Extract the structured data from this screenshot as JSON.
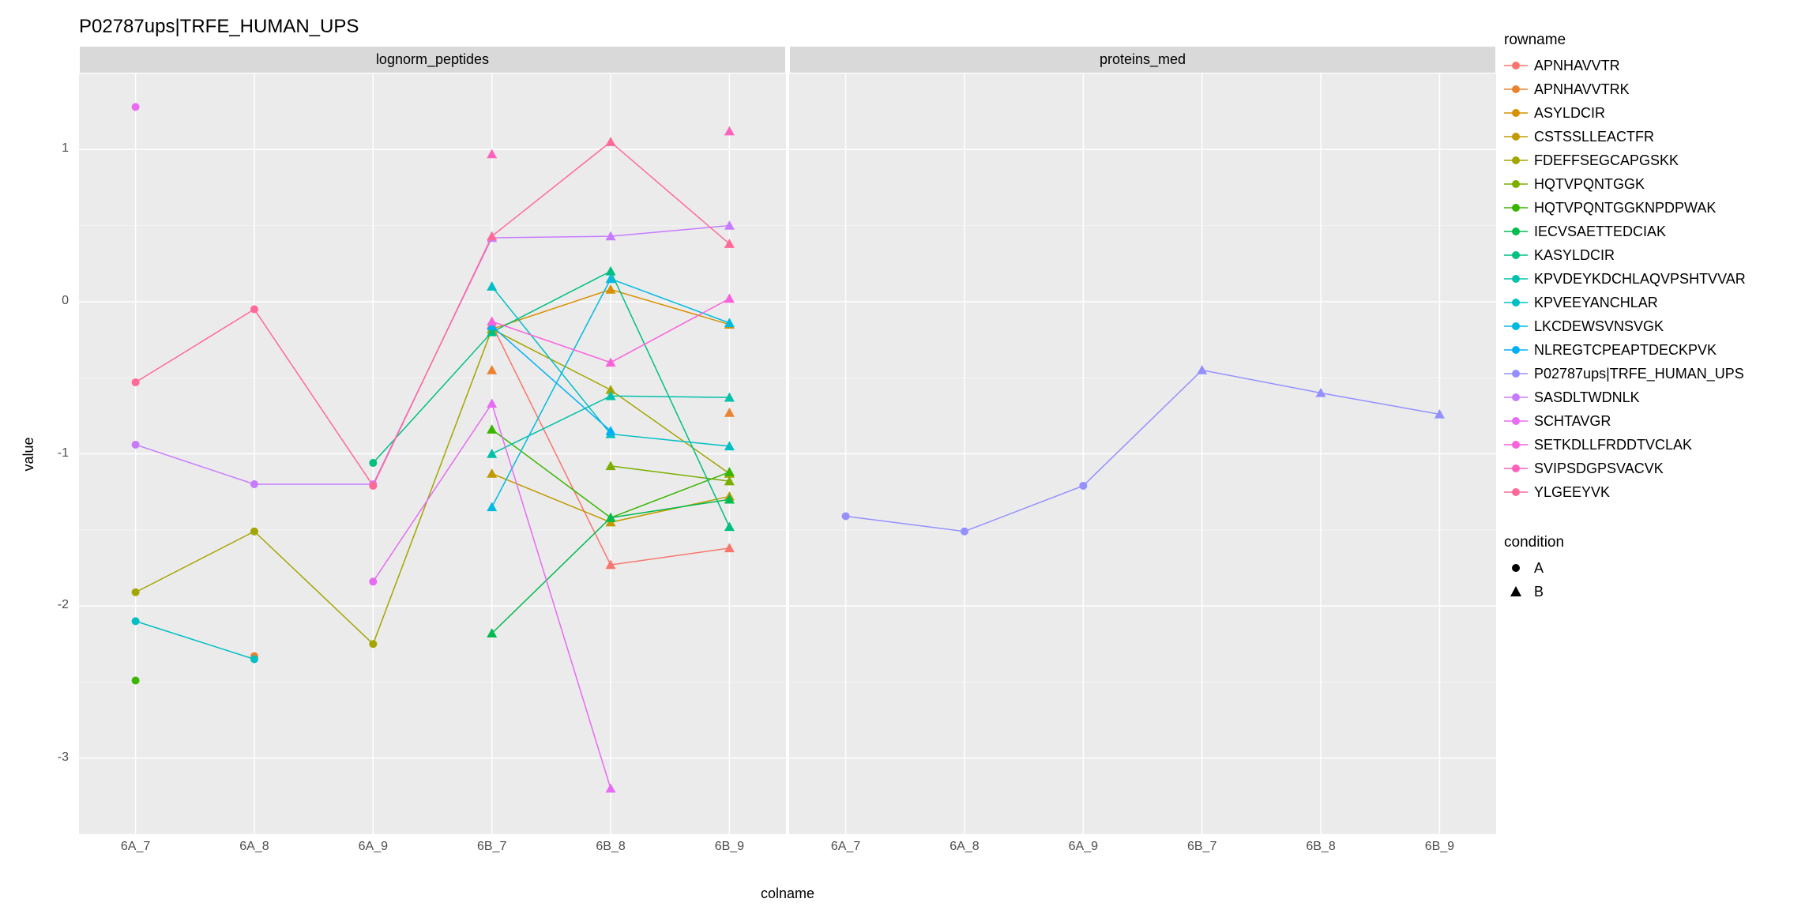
{
  "title": "P02787ups|TRFE_HUMAN_UPS",
  "y_axis": {
    "label": "value",
    "min": -3.5,
    "max": 1.5,
    "ticks": [
      -3,
      -2,
      -1,
      0,
      1
    ]
  },
  "x_axis": {
    "label": "colname",
    "categories": [
      "6A_7",
      "6A_8",
      "6A_9",
      "6B_7",
      "6B_8",
      "6B_9"
    ]
  },
  "facets": [
    {
      "label": "lognorm_peptides",
      "show_y": true
    },
    {
      "label": "proteins_med",
      "show_y": false
    }
  ],
  "conditions": [
    "A",
    "A",
    "A",
    "B",
    "B",
    "B"
  ],
  "colors": {
    "APNHAVVTR": "#F8766D",
    "APNHAVVTRK": "#EA8331",
    "ASYLDCIR": "#D89000",
    "CSTSSLLEACTFR": "#C09B00",
    "FDEFFSEGCAPGSKK": "#A3A500",
    "HQTVPQNTGGK": "#7CAE00",
    "HQTVPQNTGGKNPDPWAK": "#39B600",
    "IECVSAETTEDCIAK": "#00BB4E",
    "KASYLDCIR": "#00BF83",
    "KPVDEYKDCHLAQVPSHTVVAR": "#00C1A9",
    "KPVEEYANCHLAR": "#00BFC4",
    "LKCDEWSVNSVGK": "#00BAE0",
    "NLREGTCPEAPTDECKPVK": "#00B0F6",
    "P02787ups|TRFE_HUMAN_UPS": "#9590FF",
    "SASDLTWDNLK": "#C77CFF",
    "SCHTAVGR": "#E76BF3",
    "SETKDLLFRDDTVCLAK": "#FA62DB",
    "SVIPSDGPSVACVK": "#FF62BC",
    "YLGEEYVK": "#FF6A98"
  },
  "legend_rowname_title": "rowname",
  "legend_condition_title": "condition",
  "legend_order": [
    "APNHAVVTR",
    "APNHAVVTRK",
    "ASYLDCIR",
    "CSTSSLLEACTFR",
    "FDEFFSEGCAPGSKK",
    "HQTVPQNTGGK",
    "HQTVPQNTGGKNPDPWAK",
    "IECVSAETTEDCIAK",
    "KASYLDCIR",
    "KPVDEYKDCHLAQVPSHTVVAR",
    "KPVEEYANCHLAR",
    "LKCDEWSVNSVGK",
    "NLREGTCPEAPTDECKPVK",
    "P02787ups|TRFE_HUMAN_UPS",
    "SASDLTWDNLK",
    "SCHTAVGR",
    "SETKDLLFRDDTVCLAK",
    "SVIPSDGPSVACVK",
    "YLGEEYVK"
  ],
  "condition_legend": [
    {
      "label": "A",
      "shape": "circle"
    },
    {
      "label": "B",
      "shape": "triangle"
    }
  ],
  "series": {
    "lognorm_peptides": {
      "APNHAVVTR": [
        null,
        null,
        null,
        -0.15,
        -1.73,
        -1.62
      ],
      "APNHAVVTRK": [
        null,
        -2.33,
        null,
        -0.45,
        null,
        -0.73
      ],
      "ASYLDCIR": [
        null,
        null,
        null,
        -0.18,
        0.08,
        -0.15
      ],
      "CSTSSLLEACTFR": [
        null,
        null,
        null,
        -1.13,
        -1.45,
        -1.28
      ],
      "FDEFFSEGCAPGSKK": [
        -1.91,
        -1.51,
        -2.25,
        -0.18,
        -0.58,
        -1.13
      ],
      "HQTVPQNTGGK": [
        null,
        null,
        null,
        null,
        -1.08,
        -1.18
      ],
      "HQTVPQNTGGKNPDPWAK": [
        -2.49,
        null,
        null,
        -0.84,
        -1.42,
        -1.12
      ],
      "IECVSAETTEDCIAK": [
        null,
        null,
        null,
        -2.18,
        -1.42,
        -1.3
      ],
      "KASYLDCIR": [
        null,
        null,
        -1.06,
        -0.2,
        0.2,
        -1.48
      ],
      "KPVDEYKDCHLAQVPSHTVVAR": [
        null,
        null,
        null,
        -1.0,
        -0.62,
        -0.63
      ],
      "KPVEEYANCHLAR": [
        -2.1,
        -2.35,
        null,
        0.1,
        -0.87,
        -0.95
      ],
      "LKCDEWSVNSVGK": [
        null,
        null,
        null,
        -1.35,
        0.15,
        -0.14
      ],
      "NLREGTCPEAPTDECKPVK": [
        null,
        null,
        null,
        -0.16,
        -0.85,
        null
      ],
      "SASDLTWDNLK": [
        -0.94,
        -1.2,
        -1.2,
        0.42,
        0.43,
        0.5
      ],
      "SCHTAVGR": [
        1.28,
        null,
        -1.84,
        -0.67,
        -3.2,
        null
      ],
      "SETKDLLFRDDTVCLAK": [
        null,
        null,
        null,
        -0.13,
        -0.4,
        0.02
      ],
      "SVIPSDGPSVACVK": [
        null,
        null,
        null,
        0.97,
        null,
        1.12
      ],
      "YLGEEYVK": [
        -0.53,
        -0.05,
        -1.21,
        0.43,
        1.05,
        0.38
      ]
    },
    "proteins_med": {
      "P02787ups|TRFE_HUMAN_UPS": [
        -1.41,
        -1.51,
        -1.21,
        -0.45,
        -0.6,
        -0.74
      ]
    }
  },
  "styling": {
    "panel_bg": "#ebebeb",
    "strip_bg": "#d9d9d9",
    "grid_color": "#ffffff",
    "marker_radius": 5,
    "triangle_size": 12,
    "line_width": 1.5,
    "title_fontsize": 24,
    "axis_fontsize": 18,
    "tick_fontsize": 16
  }
}
